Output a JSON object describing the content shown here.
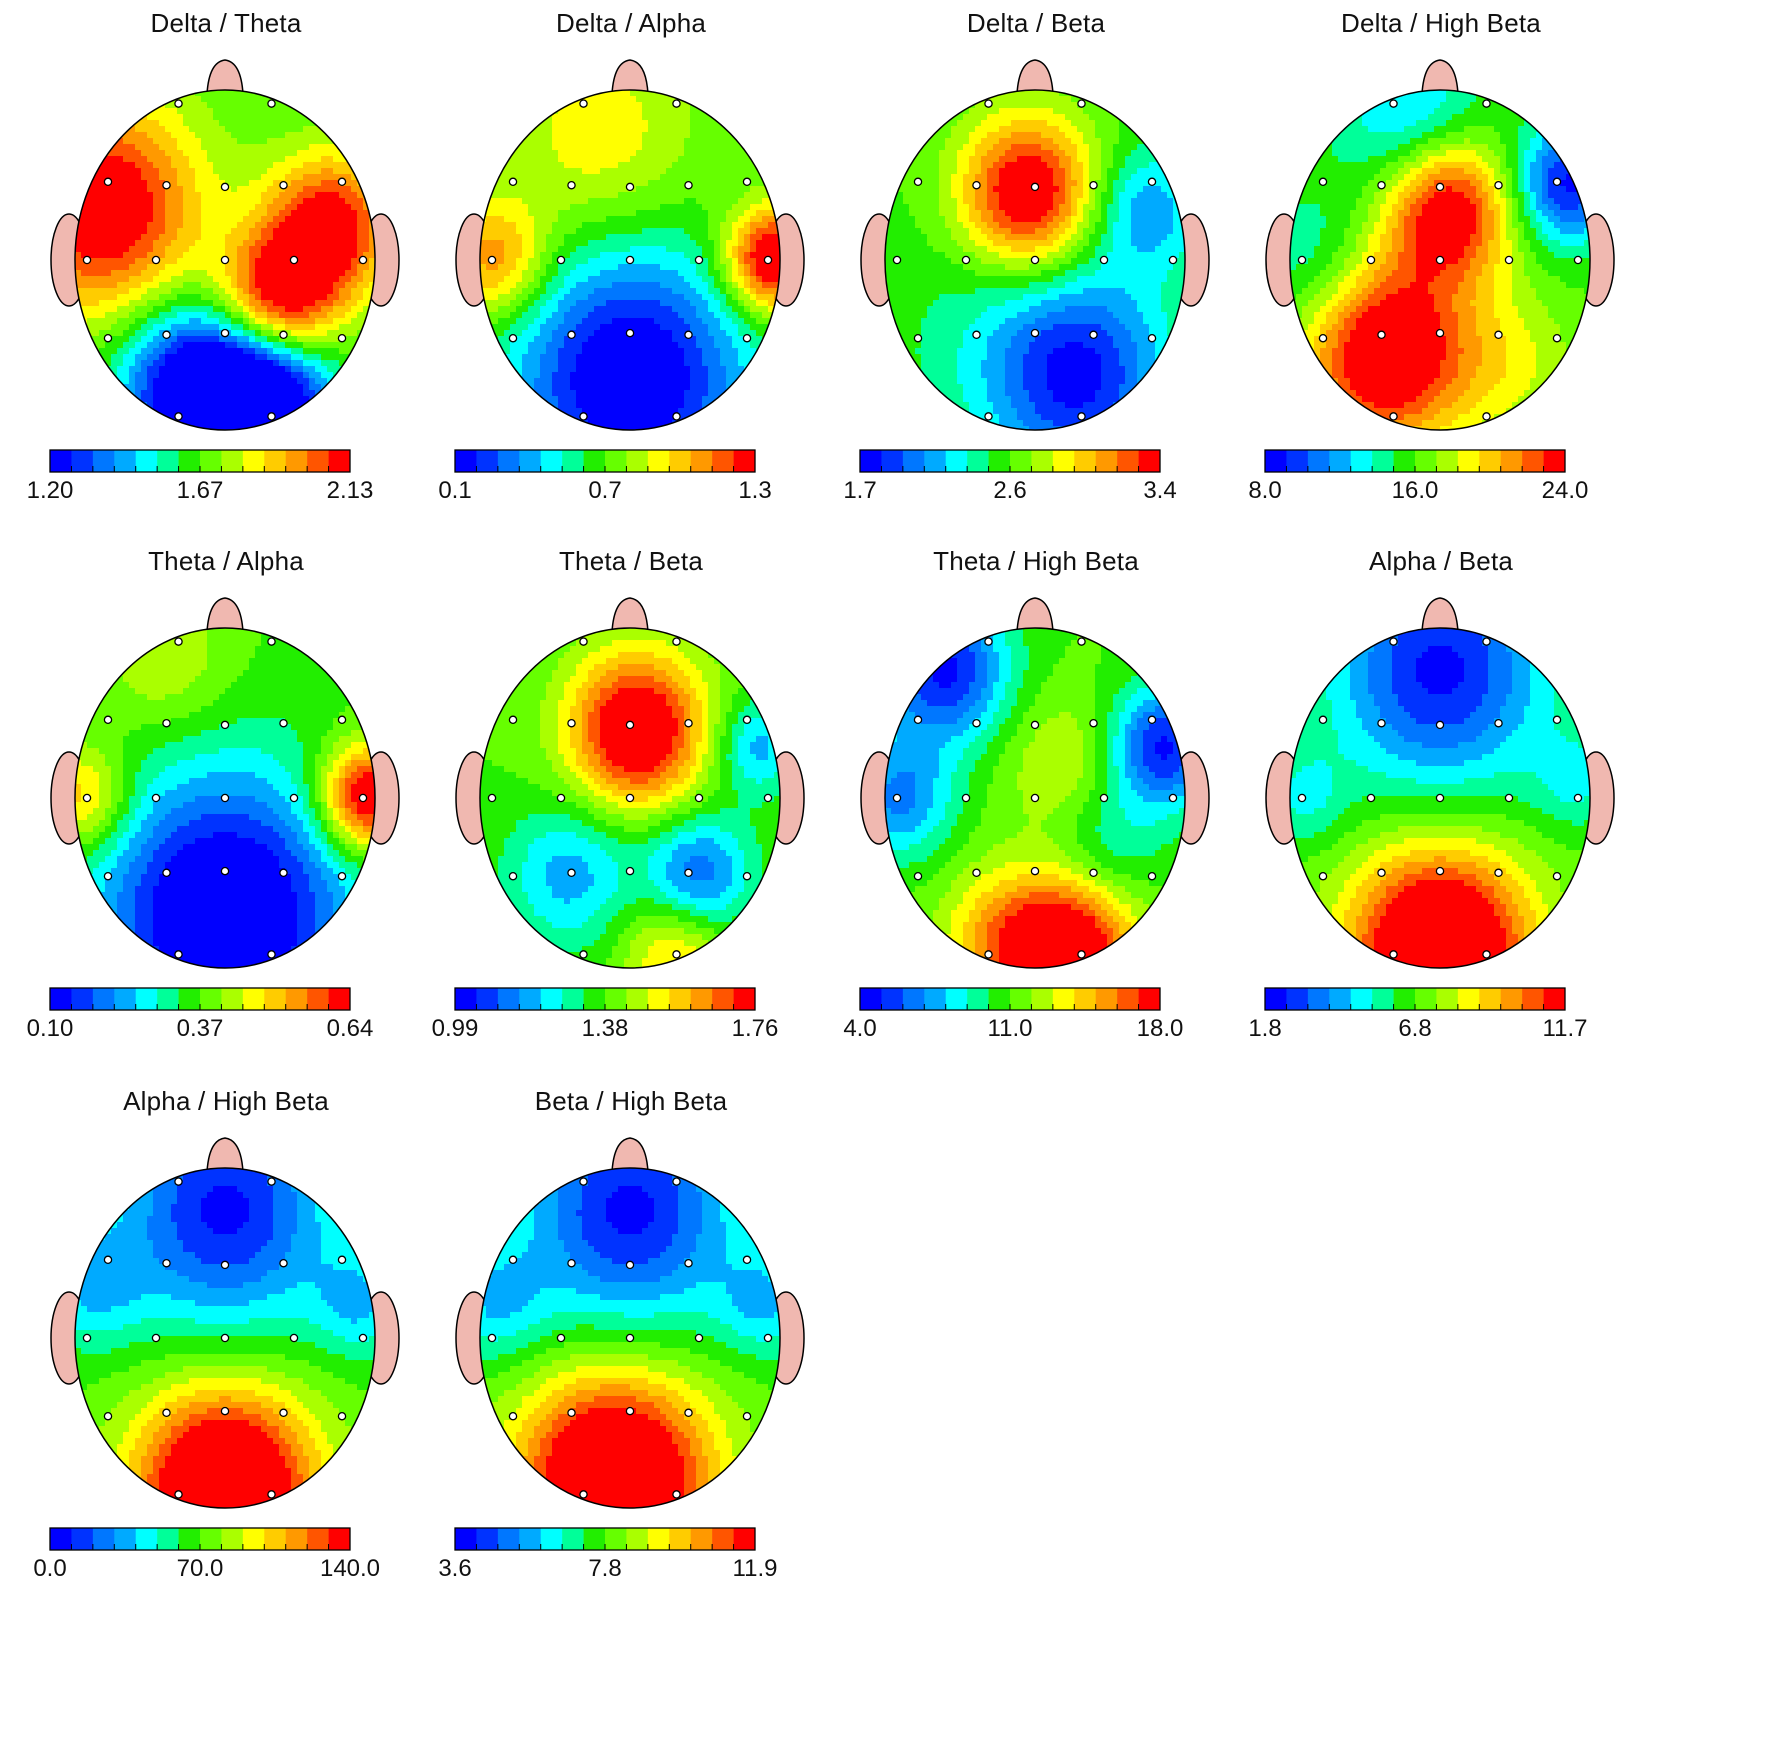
{
  "chart_data": [
    {
      "type": "heatmap",
      "title": "Delta / Theta",
      "colorbar_ticks": [
        "1.20",
        "1.67",
        "2.13"
      ],
      "range": [
        1.2,
        2.13
      ],
      "blobs": [
        [
          -0.8,
          -0.3,
          0.55,
          0.45
        ],
        [
          0.7,
          -0.2,
          0.5,
          0.3
        ],
        [
          0.35,
          0.25,
          0.55,
          0.28
        ],
        [
          -0.2,
          0.75,
          -0.6,
          0.35
        ],
        [
          0.3,
          0.8,
          -0.6,
          0.3
        ]
      ]
    },
    {
      "type": "heatmap",
      "title": "Delta / Alpha",
      "colorbar_ticks": [
        "0.1",
        "0.7",
        "1.3"
      ],
      "range": [
        0.1,
        1.3
      ],
      "blobs": [
        [
          -0.9,
          0.0,
          0.35,
          0.25
        ],
        [
          0.95,
          0.0,
          0.6,
          0.22
        ],
        [
          -0.2,
          -0.7,
          0.2,
          0.45
        ],
        [
          0,
          0.7,
          -0.55,
          0.55
        ]
      ]
    },
    {
      "type": "heatmap",
      "title": "Delta / Beta",
      "colorbar_ticks": [
        "1.7",
        "2.6",
        "3.4"
      ],
      "range": [
        1.7,
        3.4
      ],
      "blobs": [
        [
          -0.05,
          -0.38,
          0.6,
          0.32
        ],
        [
          0.3,
          0.7,
          -0.35,
          0.4
        ],
        [
          0.75,
          -0.3,
          -0.25,
          0.25
        ],
        [
          0,
          0.45,
          -0.15,
          0.6
        ]
      ]
    },
    {
      "type": "heatmap",
      "title": "Delta / High Beta",
      "colorbar_ticks": [
        "8.0",
        "16.0",
        "24.0"
      ],
      "range": [
        8.0,
        24.0
      ],
      "blobs": [
        [
          0.05,
          -0.3,
          0.55,
          0.3
        ],
        [
          -0.35,
          0.55,
          0.6,
          0.38
        ],
        [
          0.45,
          0.6,
          0.15,
          0.3
        ],
        [
          0.85,
          -0.45,
          -0.45,
          0.25
        ],
        [
          -0.2,
          -0.85,
          -0.25,
          0.35
        ],
        [
          -0.85,
          0.0,
          -0.15,
          0.3
        ]
      ]
    },
    {
      "type": "heatmap",
      "title": "Theta / Alpha",
      "colorbar_ticks": [
        "0.10",
        "0.37",
        "0.64"
      ],
      "range": [
        0.1,
        0.64
      ],
      "blobs": [
        [
          0.95,
          0.0,
          0.6,
          0.22
        ],
        [
          -0.95,
          0.0,
          0.3,
          0.22
        ],
        [
          -0.4,
          -0.8,
          0.15,
          0.3
        ],
        [
          0,
          0.7,
          -0.6,
          0.6
        ]
      ]
    },
    {
      "type": "heatmap",
      "title": "Theta / Beta",
      "colorbar_ticks": [
        "0.99",
        "1.38",
        "1.76"
      ],
      "range": [
        0.99,
        1.76
      ],
      "blobs": [
        [
          0.05,
          -0.4,
          0.6,
          0.32
        ],
        [
          0.45,
          0.45,
          -0.35,
          0.25
        ],
        [
          -0.4,
          0.45,
          -0.25,
          0.3
        ],
        [
          0.3,
          0.9,
          0.25,
          0.25
        ],
        [
          0.85,
          -0.3,
          -0.25,
          0.2
        ]
      ]
    },
    {
      "type": "heatmap",
      "title": "Theta / High Beta",
      "colorbar_ticks": [
        "4.0",
        "11.0",
        "18.0"
      ],
      "range": [
        4.0,
        18.0
      ],
      "blobs": [
        [
          0.25,
          0.9,
          0.55,
          0.3
        ],
        [
          -0.2,
          0.85,
          0.3,
          0.3
        ],
        [
          0.2,
          -0.2,
          0.15,
          0.3
        ],
        [
          -0.6,
          -0.75,
          -0.45,
          0.3
        ],
        [
          0.85,
          -0.3,
          -0.45,
          0.25
        ],
        [
          -0.9,
          0.0,
          -0.3,
          0.25
        ],
        [
          0.5,
          0.25,
          -0.15,
          0.25
        ]
      ]
    },
    {
      "type": "heatmap",
      "title": "Alpha / Beta",
      "colorbar_ticks": [
        "1.8",
        "6.8",
        "11.7"
      ],
      "range": [
        1.8,
        11.7
      ],
      "blobs": [
        [
          0.0,
          0.9,
          0.75,
          0.42
        ],
        [
          0,
          -0.75,
          -0.45,
          0.5
        ],
        [
          -0.9,
          0.0,
          -0.15,
          0.2
        ],
        [
          0.9,
          -0.1,
          -0.15,
          0.2
        ]
      ]
    },
    {
      "type": "heatmap",
      "title": "Alpha / High Beta",
      "colorbar_ticks": [
        "0.0",
        "70.0",
        "140.0"
      ],
      "range": [
        0.0,
        140.0
      ],
      "blobs": [
        [
          0.0,
          0.9,
          0.75,
          0.42
        ],
        [
          0,
          -0.75,
          -0.45,
          0.5
        ],
        [
          -0.9,
          -0.3,
          -0.2,
          0.25
        ],
        [
          0.9,
          -0.2,
          -0.2,
          0.22
        ]
      ]
    },
    {
      "type": "heatmap",
      "title": "Beta / High Beta",
      "colorbar_ticks": [
        "3.6",
        "7.8",
        "11.9"
      ],
      "range": [
        3.6,
        11.9
      ],
      "blobs": [
        [
          -0.1,
          0.85,
          0.75,
          0.45
        ],
        [
          0,
          -0.75,
          -0.45,
          0.5
        ],
        [
          -0.9,
          -0.2,
          -0.2,
          0.25
        ],
        [
          0.9,
          -0.2,
          -0.2,
          0.22
        ]
      ]
    }
  ],
  "style": {
    "palette": [
      "#0000ff",
      "#0033ff",
      "#0077ff",
      "#00aaff",
      "#00ffff",
      "#00ff99",
      "#22ee00",
      "#66ff00",
      "#aaff00",
      "#ffff00",
      "#ffcc00",
      "#ff9900",
      "#ff5500",
      "#ff0000"
    ],
    "head_outline": "#000000",
    "ear_nose": "#f0b8b0",
    "electrode": "#ffffff"
  }
}
